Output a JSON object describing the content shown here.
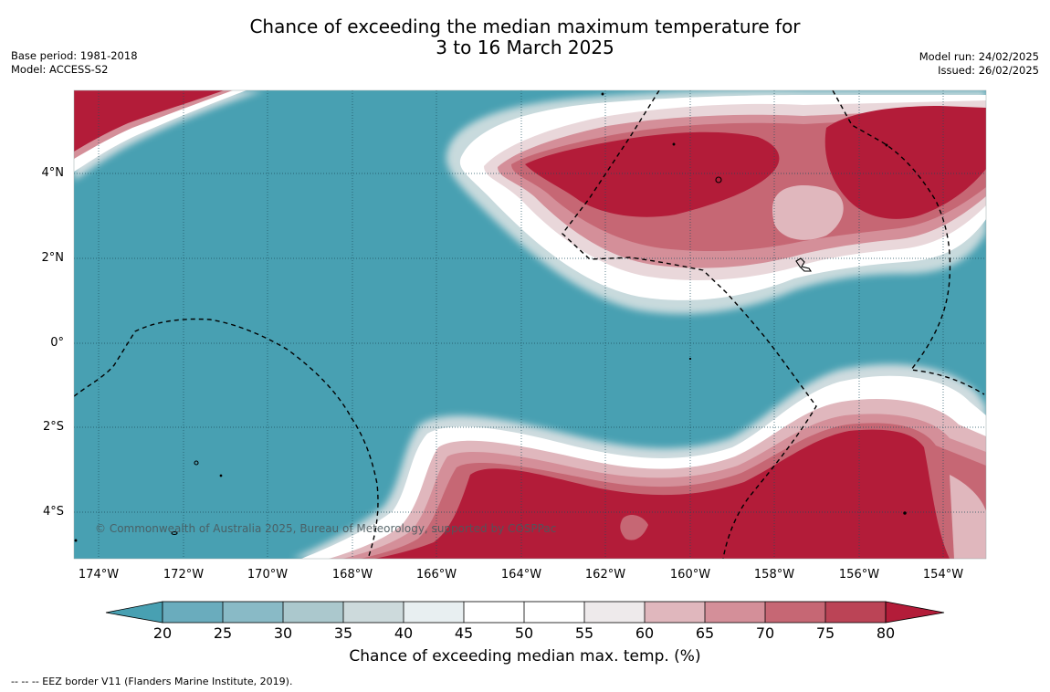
{
  "title": {
    "line1": "Chance of exceeding the median maximum temperature for",
    "line2": "3 to 16 March 2025"
  },
  "meta_left": {
    "base_period": "Base period: 1981-2018",
    "model": "Model: ACCESS-S2"
  },
  "meta_right": {
    "model_run": "Model run: 24/02/2025",
    "issued": "Issued: 26/02/2025"
  },
  "map": {
    "lat_labels": [
      "4°N",
      "2°N",
      "0°",
      "2°S",
      "4°S"
    ],
    "lon_labels": [
      "174°W",
      "172°W",
      "170°W",
      "168°W",
      "166°W",
      "164°W",
      "162°W",
      "160°W",
      "158°W",
      "156°W",
      "154°W"
    ],
    "copyright": "© Commonwealth of Australia 2025, Bureau of Meteorology, supported by COSPPac",
    "colors": {
      "ocean_below_20": "#48a0b2",
      "above_80": "#b31c39"
    }
  },
  "colorbar": {
    "ticks": [
      "20",
      "25",
      "30",
      "35",
      "40",
      "45",
      "50",
      "55",
      "60",
      "65",
      "70",
      "75",
      "80"
    ],
    "colors": [
      "#48a0b2",
      "#6aacbd",
      "#89bac6",
      "#abc8cd",
      "#cddadc",
      "#e8eff1",
      "#ffffff",
      "#ffffff",
      "#eeeaeb",
      "#e0b7bd",
      "#d48f99",
      "#c66774",
      "#bb4456",
      "#b31c39"
    ],
    "label": "Chance of exceeding median max. temp. (%)"
  },
  "footer": "--  --  -- EEZ border V11 (Flanders Marine Institute, 2019)."
}
